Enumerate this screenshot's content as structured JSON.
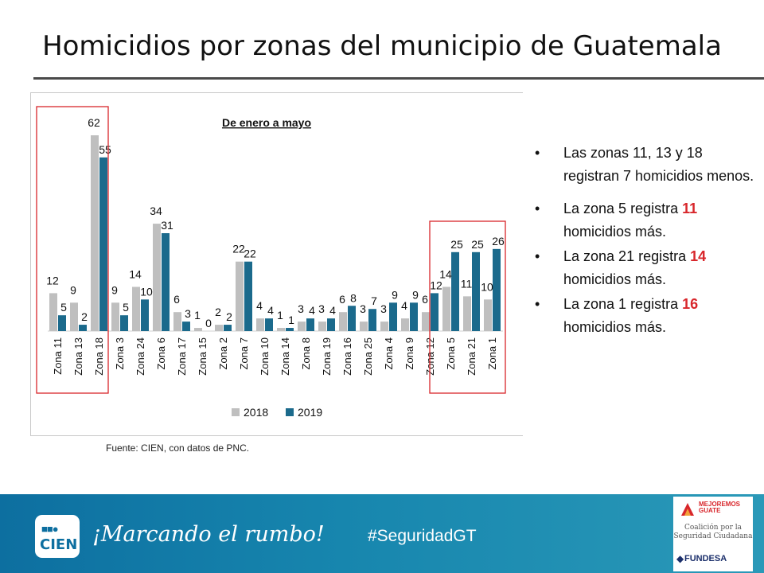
{
  "title": "Homicidios por zonas del municipio de Guatemala",
  "source": "Fuente: CIEN, con datos de PNC.",
  "bullets": {
    "b1": "Las zonas 11, 13 y 18 registran 7 homicidios menos.",
    "b2_pre": "La zona 5 registra ",
    "b2_num": "11",
    "b2_post": " homicidios más.",
    "b3_pre": "La zona 21 registra ",
    "b3_num": "14",
    "b3_post": " homicidios más.",
    "b4_pre": "La zona 1 registra ",
    "b4_num": "16",
    "b4_post": " homicidios más.",
    "bullet_char": "•"
  },
  "footer": {
    "logo_text": "CIEN",
    "logo_dots": "■■●",
    "slogan": "¡Marcando el rumbo!",
    "hashtag": "#SeguridadGT",
    "partner_mg": "MEJOREMOS GUATE",
    "partner_coalicion_1": "Coalición por la",
    "partner_coalicion_2": "Seguridad Ciudadana",
    "partner_fundesa": "FUNDESA"
  },
  "colors": {
    "s2018": "#bfbfbf",
    "s2019": "#1b6a8c",
    "highlight": "#d8262b",
    "accent_red": "#d8262b"
  },
  "chart_data": {
    "type": "bar",
    "title": "De enero a mayo",
    "categories": [
      "Zona 11",
      "Zona 13",
      "Zona 18",
      "Zona 3",
      "Zona 24",
      "Zona 6",
      "Zona 17",
      "Zona 15",
      "Zona 2",
      "Zona 7",
      "Zona 10",
      "Zona 14",
      "Zona 8",
      "Zona 19",
      "Zona 16",
      "Zona 25",
      "Zona 4",
      "Zona 9",
      "Zona 12",
      "Zona 5",
      "Zona 21",
      "Zona 1"
    ],
    "series": [
      {
        "name": "2018",
        "values": [
          12,
          9,
          62,
          9,
          14,
          34,
          6,
          1,
          2,
          22,
          4,
          1,
          3,
          3,
          6,
          3,
          3,
          4,
          6,
          14,
          11,
          10
        ]
      },
      {
        "name": "2019",
        "values": [
          5,
          2,
          55,
          5,
          10,
          31,
          3,
          0,
          2,
          22,
          4,
          1,
          4,
          4,
          8,
          7,
          9,
          9,
          12,
          25,
          25,
          26
        ]
      }
    ],
    "ylim": [
      0,
      62
    ],
    "highlighted_groups": [
      [
        "Zona 11",
        "Zona 13",
        "Zona 18"
      ],
      [
        "Zona 5",
        "Zona 21",
        "Zona 1"
      ]
    ],
    "legend_position": "bottom"
  }
}
